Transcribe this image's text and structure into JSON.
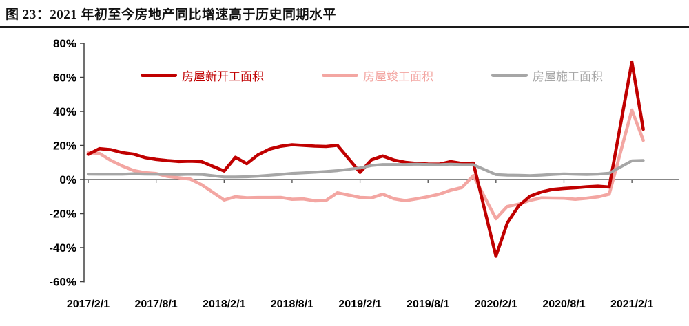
{
  "page": {
    "title": "图 23：2021 年初至今房地产同比增速高于历史同期水平"
  },
  "chart_data": {
    "type": "line",
    "title": "",
    "grid": false,
    "legend_position": "top",
    "y_axis": {
      "unit": "%",
      "min": -60,
      "max": 80,
      "tick_values": [
        80,
        60,
        40,
        20,
        0,
        -20,
        -40,
        -60
      ],
      "tick_labels": [
        "80%",
        "60%",
        "40%",
        "20%",
        "0%",
        "-20%",
        "-40%",
        "-60%"
      ]
    },
    "x_axis": {
      "tick_month_offsets": [
        0,
        6,
        12,
        18,
        24,
        30,
        36,
        42,
        48
      ],
      "tick_labels": [
        "2017/2/1",
        "2017/8/1",
        "2018/2/1",
        "2018/8/1",
        "2019/2/1",
        "2019/8/1",
        "2020/2/1",
        "2020/8/1",
        "2021/2/1"
      ]
    },
    "categories": [
      "2017/2",
      "2017/3",
      "2017/4",
      "2017/5",
      "2017/6",
      "2017/7",
      "2017/8",
      "2017/9",
      "2017/10",
      "2017/11",
      "2017/12",
      "2018/2",
      "2018/3",
      "2018/4",
      "2018/5",
      "2018/6",
      "2018/7",
      "2018/8",
      "2018/9",
      "2018/10",
      "2018/11",
      "2018/12",
      "2019/2",
      "2019/3",
      "2019/4",
      "2019/5",
      "2019/6",
      "2019/7",
      "2019/8",
      "2019/9",
      "2019/10",
      "2019/11",
      "2019/12",
      "2020/2",
      "2020/3",
      "2020/4",
      "2020/5",
      "2020/6",
      "2020/7",
      "2020/8",
      "2020/9",
      "2020/10",
      "2020/11",
      "2020/12",
      "2021/2",
      "2021/3"
    ],
    "month_offsets": [
      0,
      1,
      2,
      3,
      4,
      5,
      6,
      7,
      8,
      9,
      10,
      12,
      13,
      14,
      15,
      16,
      17,
      18,
      19,
      20,
      21,
      22,
      24,
      25,
      26,
      27,
      28,
      29,
      30,
      31,
      32,
      33,
      34,
      36,
      37,
      38,
      39,
      40,
      41,
      42,
      43,
      44,
      45,
      46,
      48,
      49
    ],
    "series": [
      {
        "id": "new-starts",
        "name": "房屋新开工面积",
        "color": "#c00000",
        "values": [
          14.8,
          18.1,
          17.5,
          15.8,
          14.9,
          12.9,
          11.8,
          11.1,
          10.6,
          10.8,
          10.5,
          5.0,
          13.0,
          9.3,
          14.5,
          17.8,
          19.5,
          20.4,
          20.0,
          19.6,
          19.4,
          20.1,
          4.2,
          11.5,
          13.8,
          11.4,
          10.1,
          9.4,
          9.1,
          9.0,
          10.5,
          9.4,
          9.6,
          -45.0,
          -25.5,
          -15.5,
          -9.8,
          -7.3,
          -5.8,
          -5.2,
          -4.8,
          -4.3,
          -3.9,
          -4.4,
          69.0,
          29.5
        ]
      },
      {
        "id": "completions",
        "name": "房屋竣工面积",
        "color": "#f3a6a2",
        "values": [
          15.8,
          15.3,
          11.2,
          8.0,
          5.3,
          4.0,
          3.5,
          1.8,
          1.0,
          0.3,
          -3.0,
          -12.0,
          -10.1,
          -10.7,
          -10.6,
          -10.6,
          -10.5,
          -11.6,
          -11.4,
          -12.5,
          -12.3,
          -7.8,
          -10.5,
          -10.8,
          -8.6,
          -11.3,
          -12.4,
          -11.3,
          -10.1,
          -8.6,
          -6.3,
          -4.7,
          2.3,
          -23.0,
          -15.8,
          -14.5,
          -12.2,
          -10.8,
          -10.9,
          -11.0,
          -11.6,
          -11.0,
          -10.2,
          -8.6,
          40.8,
          23.0
        ]
      },
      {
        "id": "under-construction",
        "name": "房屋施工面积",
        "color": "#a6a6a6",
        "values": [
          3.2,
          3.1,
          3.1,
          3.1,
          3.4,
          3.2,
          3.1,
          3.1,
          2.9,
          3.1,
          3.0,
          1.5,
          1.5,
          1.6,
          2.0,
          2.5,
          3.0,
          3.6,
          3.9,
          4.3,
          4.7,
          5.2,
          6.8,
          8.2,
          8.8,
          8.8,
          8.8,
          9.0,
          8.8,
          8.7,
          9.0,
          8.7,
          8.7,
          2.9,
          2.6,
          2.5,
          2.3,
          2.6,
          3.0,
          3.3,
          3.1,
          3.0,
          3.2,
          3.7,
          11.0,
          11.2
        ]
      }
    ]
  }
}
